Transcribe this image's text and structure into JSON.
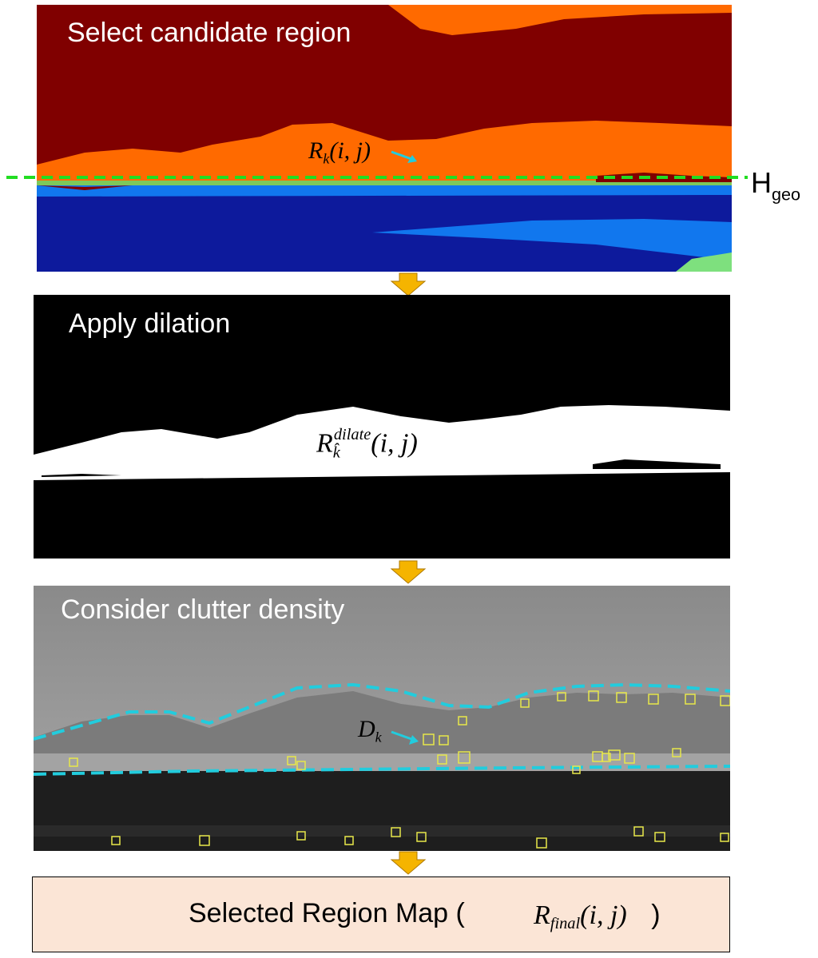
{
  "panels": {
    "candidate": {
      "title": "Select candidate region",
      "region_label": {
        "main": "R",
        "sub": "k",
        "args": "(i, j)"
      },
      "line_label": {
        "main": "H",
        "sub": "geo"
      }
    },
    "dilation": {
      "title": "Apply dilation",
      "region_label": {
        "main": "R",
        "sub": "k̂",
        "sup": "dilate",
        "args": "(i, j)"
      }
    },
    "clutter": {
      "title": "Consider clutter density",
      "density_label": {
        "main": "D",
        "sub": "k"
      }
    }
  },
  "final": {
    "text": "Selected Region Map (",
    "math_main": "R",
    "math_sub": "final",
    "math_args": "(i, j)",
    "close": ")"
  },
  "colors": {
    "dark_red": "#800000",
    "orange": "#ff6a00",
    "dark_blue": "#0d1a9c",
    "light_blue": "#1177ee",
    "green_dash": "#22dd22",
    "cyan": "#22ccdd",
    "arrow_fill": "#f5b400",
    "final_bg": "#fbe5d6",
    "clutter_box": "#e8e84a"
  }
}
